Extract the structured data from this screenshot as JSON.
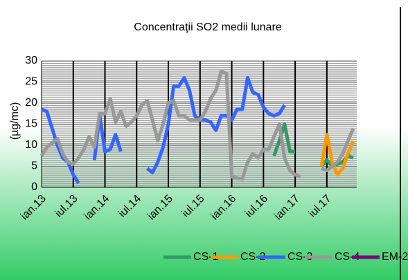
{
  "chart_data": {
    "type": "line",
    "title": "Concentraţii SO2  medii  lunare",
    "y_label": "(µg/mc)",
    "categories": [
      "ian.13",
      null,
      null,
      null,
      null,
      null,
      "iul.13",
      null,
      null,
      null,
      null,
      null,
      "ian.14",
      null,
      null,
      null,
      null,
      null,
      "iul.14",
      null,
      null,
      null,
      null,
      null,
      "ian.15",
      null,
      null,
      null,
      null,
      null,
      "iul.15",
      null,
      null,
      null,
      null,
      null,
      "ian.16",
      null,
      null,
      null,
      null,
      null,
      "iul.16",
      null,
      null,
      null,
      null,
      null,
      "ian.17",
      null,
      null,
      null,
      null,
      null,
      "iul.17",
      null,
      null,
      null,
      null,
      null
    ],
    "series": [
      {
        "name": "CS-1",
        "color": "#339966",
        "values": [
          null,
          null,
          null,
          null,
          null,
          null,
          null,
          null,
          null,
          null,
          null,
          null,
          null,
          null,
          null,
          null,
          null,
          null,
          null,
          null,
          null,
          null,
          null,
          null,
          null,
          null,
          null,
          null,
          null,
          null,
          null,
          null,
          null,
          null,
          null,
          null,
          null,
          null,
          null,
          null,
          null,
          null,
          null,
          null,
          7.5,
          11,
          15,
          8.5,
          8.5,
          null,
          null,
          null,
          null,
          5,
          6.5,
          5,
          5.5,
          6,
          7.5,
          7
        ]
      },
      {
        "name": "CS-2",
        "color": "#ff9900",
        "values": [
          null,
          null,
          null,
          null,
          null,
          null,
          null,
          null,
          null,
          null,
          null,
          null,
          null,
          null,
          null,
          null,
          null,
          null,
          null,
          null,
          null,
          null,
          null,
          null,
          null,
          null,
          null,
          null,
          null,
          null,
          null,
          null,
          null,
          null,
          null,
          null,
          null,
          null,
          null,
          null,
          null,
          null,
          null,
          null,
          null,
          null,
          null,
          null,
          null,
          null,
          null,
          null,
          null,
          5,
          12.5,
          6,
          3,
          4.5,
          8,
          11
        ]
      },
      {
        "name": "CS-3",
        "color": "#3366ff",
        "values": [
          18.5,
          18,
          14,
          10,
          7,
          6,
          3,
          1,
          null,
          null,
          6.5,
          17,
          8.5,
          9,
          12.5,
          8.5,
          null,
          null,
          null,
          null,
          4.5,
          3.5,
          6,
          9.5,
          15,
          24,
          24,
          26,
          23,
          17,
          16,
          16,
          15.5,
          13.5,
          17,
          17,
          16,
          18.5,
          18.5,
          26,
          22.5,
          22,
          19,
          17.5,
          17,
          17.5,
          19.5,
          null,
          null,
          null,
          null,
          null,
          null,
          null,
          null,
          null,
          null,
          null,
          null,
          null
        ]
      },
      {
        "name": "CS-4",
        "color": "#999999",
        "values": [
          7.5,
          9.5,
          10.5,
          11.5,
          8,
          6,
          5.5,
          7,
          9,
          12,
          9.5,
          17.5,
          17.5,
          21,
          15.5,
          18,
          14.5,
          15.5,
          17,
          19.5,
          20.5,
          16,
          11,
          15,
          20,
          20.5,
          17,
          17,
          16,
          16,
          16,
          18,
          21,
          23,
          27.5,
          27,
          2.5,
          2.2,
          2,
          6,
          8,
          7,
          9,
          9,
          12,
          15,
          7,
          4,
          3,
          2.5,
          null,
          null,
          null,
          4.5,
          4,
          5,
          6,
          8,
          11,
          14
        ]
      },
      {
        "name": "EM-2",
        "color": "#800080",
        "values": [
          null,
          null,
          null,
          null,
          null,
          null,
          null,
          null,
          null,
          null,
          null,
          null,
          null,
          null,
          null,
          null,
          null,
          null,
          null,
          null,
          null,
          null,
          null,
          null,
          null,
          null,
          null,
          null,
          null,
          null,
          null,
          null,
          null,
          null,
          null,
          null,
          null,
          null,
          null,
          null,
          null,
          null,
          null,
          null,
          null,
          null,
          null,
          null,
          null,
          null,
          null,
          null,
          null,
          null,
          null,
          null,
          null,
          null,
          null,
          null
        ]
      }
    ],
    "ylim": [
      0,
      30
    ],
    "yticks": [
      0,
      5,
      10,
      15,
      20,
      25,
      30
    ],
    "grid": true,
    "legend": "bottom"
  }
}
